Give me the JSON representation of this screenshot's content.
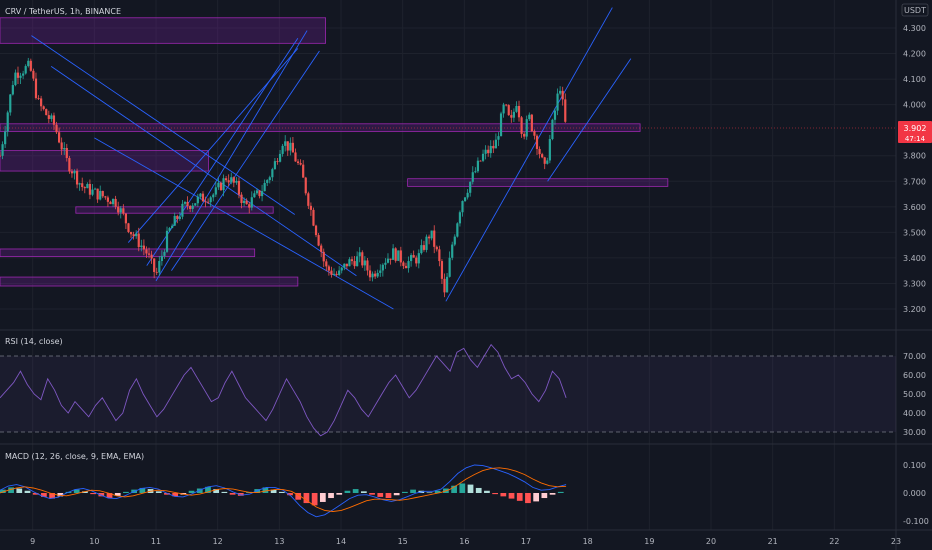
{
  "colors": {
    "background": "#131722",
    "grid": "#1e222d",
    "up": "#26a69a",
    "down": "#ef5350",
    "zone_fill": "#7b1fa2",
    "zone_stroke": "#9c27b0",
    "trendline": "#2962ff",
    "rsi_line": "#7e57c2",
    "macd_line": "#2962ff",
    "signal_line": "#ff6d00",
    "price_badge": "#f23645",
    "text": "#b2b5be"
  },
  "chart_data": [
    {
      "id": "price",
      "type": "candlestick",
      "title": "CRV / TetherUS, 1h, BINANCE",
      "y_unit": "USDT",
      "ylim": [
        3.15,
        4.35
      ],
      "y_ticks": [
        "4.300",
        "4.200",
        "4.100",
        "4.000",
        "3.800",
        "3.700",
        "3.600",
        "3.500",
        "3.400",
        "3.300",
        "3.200"
      ],
      "last_price": "3.902",
      "countdown": "47:14",
      "x_ticks": [
        {
          "label": "9",
          "day": 9
        },
        {
          "label": "10",
          "day": 10
        },
        {
          "label": "11",
          "day": 11
        },
        {
          "label": "12",
          "day": 12
        },
        {
          "label": "13",
          "day": 13
        },
        {
          "label": "14",
          "day": 14
        },
        {
          "label": "15",
          "day": 15
        },
        {
          "label": "16",
          "day": 16
        },
        {
          "label": "17",
          "day": 17
        },
        {
          "label": "18",
          "day": 18
        },
        {
          "label": "19",
          "day": 19
        },
        {
          "label": "20",
          "day": 20
        },
        {
          "label": "21",
          "day": 21
        },
        {
          "label": "22",
          "day": 22
        },
        {
          "label": "23",
          "day": 23
        }
      ],
      "x_range_days": [
        8.47,
        23.0
      ],
      "candle_anchors": [
        [
          8.47,
          3.8
        ],
        [
          8.7,
          4.12
        ],
        [
          8.95,
          4.15
        ],
        [
          9.1,
          4.0
        ],
        [
          9.35,
          3.92
        ],
        [
          9.55,
          3.78
        ],
        [
          9.8,
          3.68
        ],
        [
          10.05,
          3.65
        ],
        [
          10.35,
          3.62
        ],
        [
          10.6,
          3.5
        ],
        [
          10.85,
          3.42
        ],
        [
          11.0,
          3.33
        ],
        [
          11.2,
          3.5
        ],
        [
          11.45,
          3.6
        ],
        [
          11.7,
          3.63
        ],
        [
          11.95,
          3.65
        ],
        [
          12.15,
          3.72
        ],
        [
          12.3,
          3.68
        ],
        [
          12.45,
          3.6
        ],
        [
          12.7,
          3.66
        ],
        [
          12.9,
          3.75
        ],
        [
          13.05,
          3.86
        ],
        [
          13.2,
          3.82
        ],
        [
          13.35,
          3.74
        ],
        [
          13.55,
          3.55
        ],
        [
          13.75,
          3.36
        ],
        [
          13.95,
          3.33
        ],
        [
          14.1,
          3.38
        ],
        [
          14.3,
          3.4
        ],
        [
          14.5,
          3.33
        ],
        [
          14.65,
          3.38
        ],
        [
          14.85,
          3.42
        ],
        [
          15.05,
          3.38
        ],
        [
          15.25,
          3.4
        ],
        [
          15.45,
          3.5
        ],
        [
          15.58,
          3.4
        ],
        [
          15.68,
          3.25
        ],
        [
          15.8,
          3.45
        ],
        [
          15.95,
          3.62
        ],
        [
          16.1,
          3.7
        ],
        [
          16.3,
          3.8
        ],
        [
          16.5,
          3.84
        ],
        [
          16.65,
          4.0
        ],
        [
          16.75,
          3.92
        ],
        [
          16.85,
          4.02
        ],
        [
          16.95,
          3.88
        ],
        [
          17.05,
          3.95
        ],
        [
          17.18,
          3.85
        ],
        [
          17.3,
          3.74
        ],
        [
          17.45,
          3.95
        ],
        [
          17.55,
          4.08
        ],
        [
          17.65,
          3.9
        ]
      ],
      "zones": [
        {
          "from_day": 8.47,
          "to_day": 13.75,
          "price_low": 4.24,
          "price_high": 4.34
        },
        {
          "from_day": 8.47,
          "to_day": 18.85,
          "price_low": 3.895,
          "price_high": 3.925
        },
        {
          "from_day": 8.47,
          "to_day": 11.85,
          "price_low": 3.74,
          "price_high": 3.82
        },
        {
          "from_day": 9.7,
          "to_day": 12.9,
          "price_low": 3.575,
          "price_high": 3.6
        },
        {
          "from_day": 8.47,
          "to_day": 12.6,
          "price_low": 3.405,
          "price_high": 3.435
        },
        {
          "from_day": 8.47,
          "to_day": 13.3,
          "price_low": 3.29,
          "price_high": 3.325
        },
        {
          "from_day": 15.08,
          "to_day": 19.3,
          "price_low": 3.68,
          "price_high": 3.71
        }
      ],
      "trendlines": [
        {
          "from": [
            8.98,
            4.27
          ],
          "to": [
            13.25,
            3.57
          ]
        },
        {
          "from": [
            9.3,
            4.15
          ],
          "to": [
            14.25,
            3.33
          ]
        },
        {
          "from": [
            10.0,
            3.87
          ],
          "to": [
            14.85,
            3.2
          ]
        },
        {
          "from": [
            10.55,
            3.46
          ],
          "to": [
            13.3,
            4.22
          ]
        },
        {
          "from": [
            10.85,
            3.37
          ],
          "to": [
            13.3,
            4.26
          ]
        },
        {
          "from": [
            11.0,
            3.31
          ],
          "to": [
            13.45,
            4.29
          ]
        },
        {
          "from": [
            11.25,
            3.35
          ],
          "to": [
            13.65,
            4.21
          ]
        },
        {
          "from": [
            15.7,
            3.23
          ],
          "to": [
            18.4,
            4.38
          ]
        },
        {
          "from": [
            17.35,
            3.7
          ],
          "to": [
            18.7,
            4.18
          ]
        }
      ]
    },
    {
      "id": "rsi",
      "type": "line",
      "title": "RSI (14, close)",
      "ylim": [
        25,
        80
      ],
      "y_ticks": [
        "70.00",
        "60.00",
        "50.00",
        "40.00",
        "30.00"
      ],
      "band": [
        30,
        70
      ],
      "values": [
        48,
        52,
        56,
        62,
        55,
        50,
        47,
        58,
        52,
        44,
        40,
        46,
        42,
        38,
        44,
        48,
        42,
        36,
        40,
        52,
        58,
        50,
        44,
        38,
        42,
        48,
        54,
        60,
        64,
        58,
        52,
        46,
        48,
        56,
        62,
        55,
        48,
        44,
        40,
        36,
        42,
        50,
        58,
        52,
        46,
        38,
        32,
        28,
        30,
        36,
        44,
        52,
        48,
        42,
        38,
        44,
        50,
        56,
        60,
        54,
        48,
        52,
        58,
        64,
        70,
        66,
        62,
        72,
        74,
        68,
        64,
        70,
        76,
        72,
        64,
        58,
        60,
        56,
        50,
        46,
        52,
        62,
        58,
        48
      ]
    },
    {
      "id": "macd",
      "type": "bar",
      "title": "MACD (12, 26, close, 9, EMA, EMA)",
      "ylim": [
        -0.12,
        0.13
      ],
      "y_ticks": [
        "0.100",
        "0.000",
        "-0.100"
      ],
      "histogram": [
        0.012,
        0.02,
        0.016,
        0.008,
        -0.006,
        -0.014,
        -0.02,
        -0.012,
        0.004,
        0.012,
        0.006,
        -0.004,
        -0.012,
        -0.018,
        -0.01,
        0.004,
        0.012,
        0.018,
        0.014,
        0.006,
        -0.006,
        -0.012,
        -0.006,
        0.008,
        0.016,
        0.022,
        0.014,
        0.004,
        -0.006,
        -0.01,
        0.004,
        0.014,
        0.02,
        0.012,
        0.004,
        -0.008,
        -0.024,
        -0.036,
        -0.044,
        -0.032,
        -0.018,
        -0.006,
        0.008,
        0.014,
        0.006,
        -0.006,
        -0.014,
        -0.018,
        -0.008,
        0.004,
        0.012,
        0.008,
        0.002,
        0.008,
        0.016,
        0.026,
        0.034,
        0.03,
        0.018,
        0.008,
        -0.004,
        -0.012,
        -0.02,
        -0.028,
        -0.036,
        -0.03,
        -0.018,
        -0.006,
        0.004
      ],
      "macd": [
        0.01,
        0.025,
        0.03,
        0.022,
        0.005,
        -0.01,
        -0.02,
        -0.015,
        0.0,
        0.012,
        0.016,
        0.008,
        -0.006,
        -0.018,
        -0.02,
        -0.01,
        0.004,
        0.016,
        0.02,
        0.014,
        0.0,
        -0.012,
        -0.014,
        -0.004,
        0.01,
        0.022,
        0.026,
        0.018,
        0.004,
        -0.008,
        -0.004,
        0.01,
        0.02,
        0.02,
        0.01,
        -0.012,
        -0.045,
        -0.07,
        -0.085,
        -0.078,
        -0.06,
        -0.04,
        -0.02,
        -0.008,
        -0.006,
        -0.014,
        -0.024,
        -0.03,
        -0.024,
        -0.012,
        0.0,
        0.006,
        0.006,
        0.014,
        0.04,
        0.07,
        0.09,
        0.1,
        0.098,
        0.09,
        0.08,
        0.07,
        0.056,
        0.04,
        0.02,
        0.01,
        0.012,
        0.022,
        0.03
      ],
      "signal": [
        0.0,
        0.01,
        0.018,
        0.022,
        0.018,
        0.01,
        0.0,
        -0.008,
        -0.01,
        -0.004,
        0.004,
        0.01,
        0.008,
        0.0,
        -0.01,
        -0.014,
        -0.01,
        -0.002,
        0.006,
        0.01,
        0.008,
        0.002,
        -0.004,
        -0.008,
        -0.004,
        0.004,
        0.012,
        0.016,
        0.014,
        0.008,
        0.002,
        0.002,
        0.008,
        0.012,
        0.012,
        0.006,
        -0.01,
        -0.03,
        -0.05,
        -0.062,
        -0.066,
        -0.062,
        -0.052,
        -0.04,
        -0.028,
        -0.022,
        -0.022,
        -0.024,
        -0.026,
        -0.022,
        -0.016,
        -0.01,
        -0.004,
        0.002,
        0.012,
        0.03,
        0.05,
        0.066,
        0.08,
        0.088,
        0.09,
        0.086,
        0.078,
        0.066,
        0.05,
        0.036,
        0.026,
        0.022,
        0.024
      ]
    }
  ]
}
